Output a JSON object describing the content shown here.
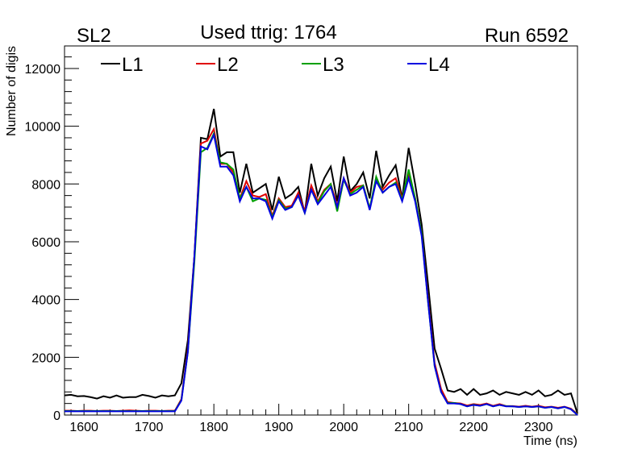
{
  "chart_data": {
    "type": "line",
    "title_left": "SL2",
    "title": "Used ttrig: 1764",
    "title_right": "Run 6592",
    "xlabel": "Time (ns)",
    "ylabel": "Number of digis",
    "xlim": [
      1570,
      2360
    ],
    "ylim": [
      0,
      12780
    ],
    "xticks": [
      1600,
      1700,
      1800,
      1900,
      2000,
      2100,
      2200,
      2300
    ],
    "yticks": [
      0,
      2000,
      4000,
      6000,
      8000,
      10000,
      12000
    ],
    "legend_position": "top",
    "x_start": 1570,
    "x_step": 10,
    "series": [
      {
        "name": "L1",
        "color": "#000000",
        "values": [
          680,
          700,
          650,
          660,
          620,
          570,
          650,
          600,
          680,
          600,
          620,
          620,
          700,
          660,
          600,
          680,
          650,
          680,
          1100,
          2600,
          5500,
          9600,
          9550,
          10600,
          8950,
          9100,
          9100,
          7700,
          8700,
          7700,
          7850,
          8000,
          7100,
          8250,
          7500,
          7650,
          7900,
          7000,
          8700,
          7600,
          8200,
          8600,
          7400,
          8950,
          7750,
          8000,
          8400,
          7500,
          9150,
          7900,
          8300,
          8650,
          7500,
          9250,
          8000,
          6600,
          4500,
          2300,
          1600,
          850,
          800,
          900,
          700,
          900,
          700,
          750,
          850,
          700,
          800,
          750,
          700,
          800,
          700,
          850,
          650,
          700,
          850,
          700,
          750,
          50
        ]
      },
      {
        "name": "L2",
        "color": "#e00000",
        "values": [
          150,
          150,
          140,
          150,
          150,
          140,
          150,
          150,
          140,
          150,
          160,
          150,
          140,
          150,
          150,
          140,
          150,
          150,
          550,
          2300,
          5500,
          9400,
          9500,
          9900,
          8700,
          8700,
          8400,
          7500,
          8100,
          7600,
          7550,
          7650,
          6900,
          7500,
          7200,
          7250,
          7700,
          7050,
          7950,
          7400,
          7800,
          8000,
          7250,
          8200,
          7700,
          7900,
          7950,
          7150,
          8150,
          7800,
          8050,
          8200,
          7500,
          8300,
          7500,
          6300,
          4000,
          1800,
          900,
          450,
          420,
          400,
          330,
          380,
          350,
          400,
          320,
          380,
          310,
          310,
          290,
          320,
          290,
          320,
          270,
          290,
          250,
          290,
          220,
          30
        ]
      },
      {
        "name": "L3",
        "color": "#00a000",
        "values": [
          140,
          140,
          140,
          140,
          140,
          140,
          140,
          140,
          140,
          140,
          140,
          140,
          140,
          140,
          140,
          140,
          140,
          140,
          520,
          2200,
          5300,
          9100,
          9250,
          9750,
          8750,
          8700,
          8500,
          7500,
          7900,
          7400,
          7500,
          7450,
          6850,
          7450,
          7150,
          7200,
          7600,
          7000,
          7800,
          7350,
          7750,
          8000,
          7050,
          8150,
          7650,
          7800,
          7950,
          7150,
          8250,
          7700,
          7900,
          8050,
          7450,
          8500,
          7500,
          6300,
          3900,
          1700,
          800,
          420,
          420,
          380,
          300,
          360,
          320,
          380,
          300,
          350,
          310,
          300,
          280,
          300,
          280,
          300,
          250,
          280,
          230,
          280,
          200,
          20
        ]
      },
      {
        "name": "L4",
        "color": "#0000e0",
        "values": [
          130,
          130,
          130,
          130,
          130,
          130,
          130,
          130,
          130,
          130,
          130,
          130,
          130,
          130,
          130,
          130,
          130,
          130,
          500,
          2200,
          5500,
          9300,
          9200,
          9700,
          8600,
          8600,
          8300,
          7400,
          7900,
          7500,
          7500,
          7400,
          6800,
          7400,
          7100,
          7200,
          7600,
          7000,
          7800,
          7300,
          7600,
          7900,
          7200,
          8200,
          7600,
          7700,
          7900,
          7100,
          8100,
          7700,
          7900,
          8000,
          7400,
          8200,
          7400,
          6200,
          3900,
          1700,
          800,
          400,
          400,
          380,
          300,
          350,
          320,
          380,
          300,
          350,
          300,
          300,
          280,
          300,
          280,
          300,
          250,
          280,
          230,
          280,
          200,
          0
        ]
      }
    ]
  }
}
